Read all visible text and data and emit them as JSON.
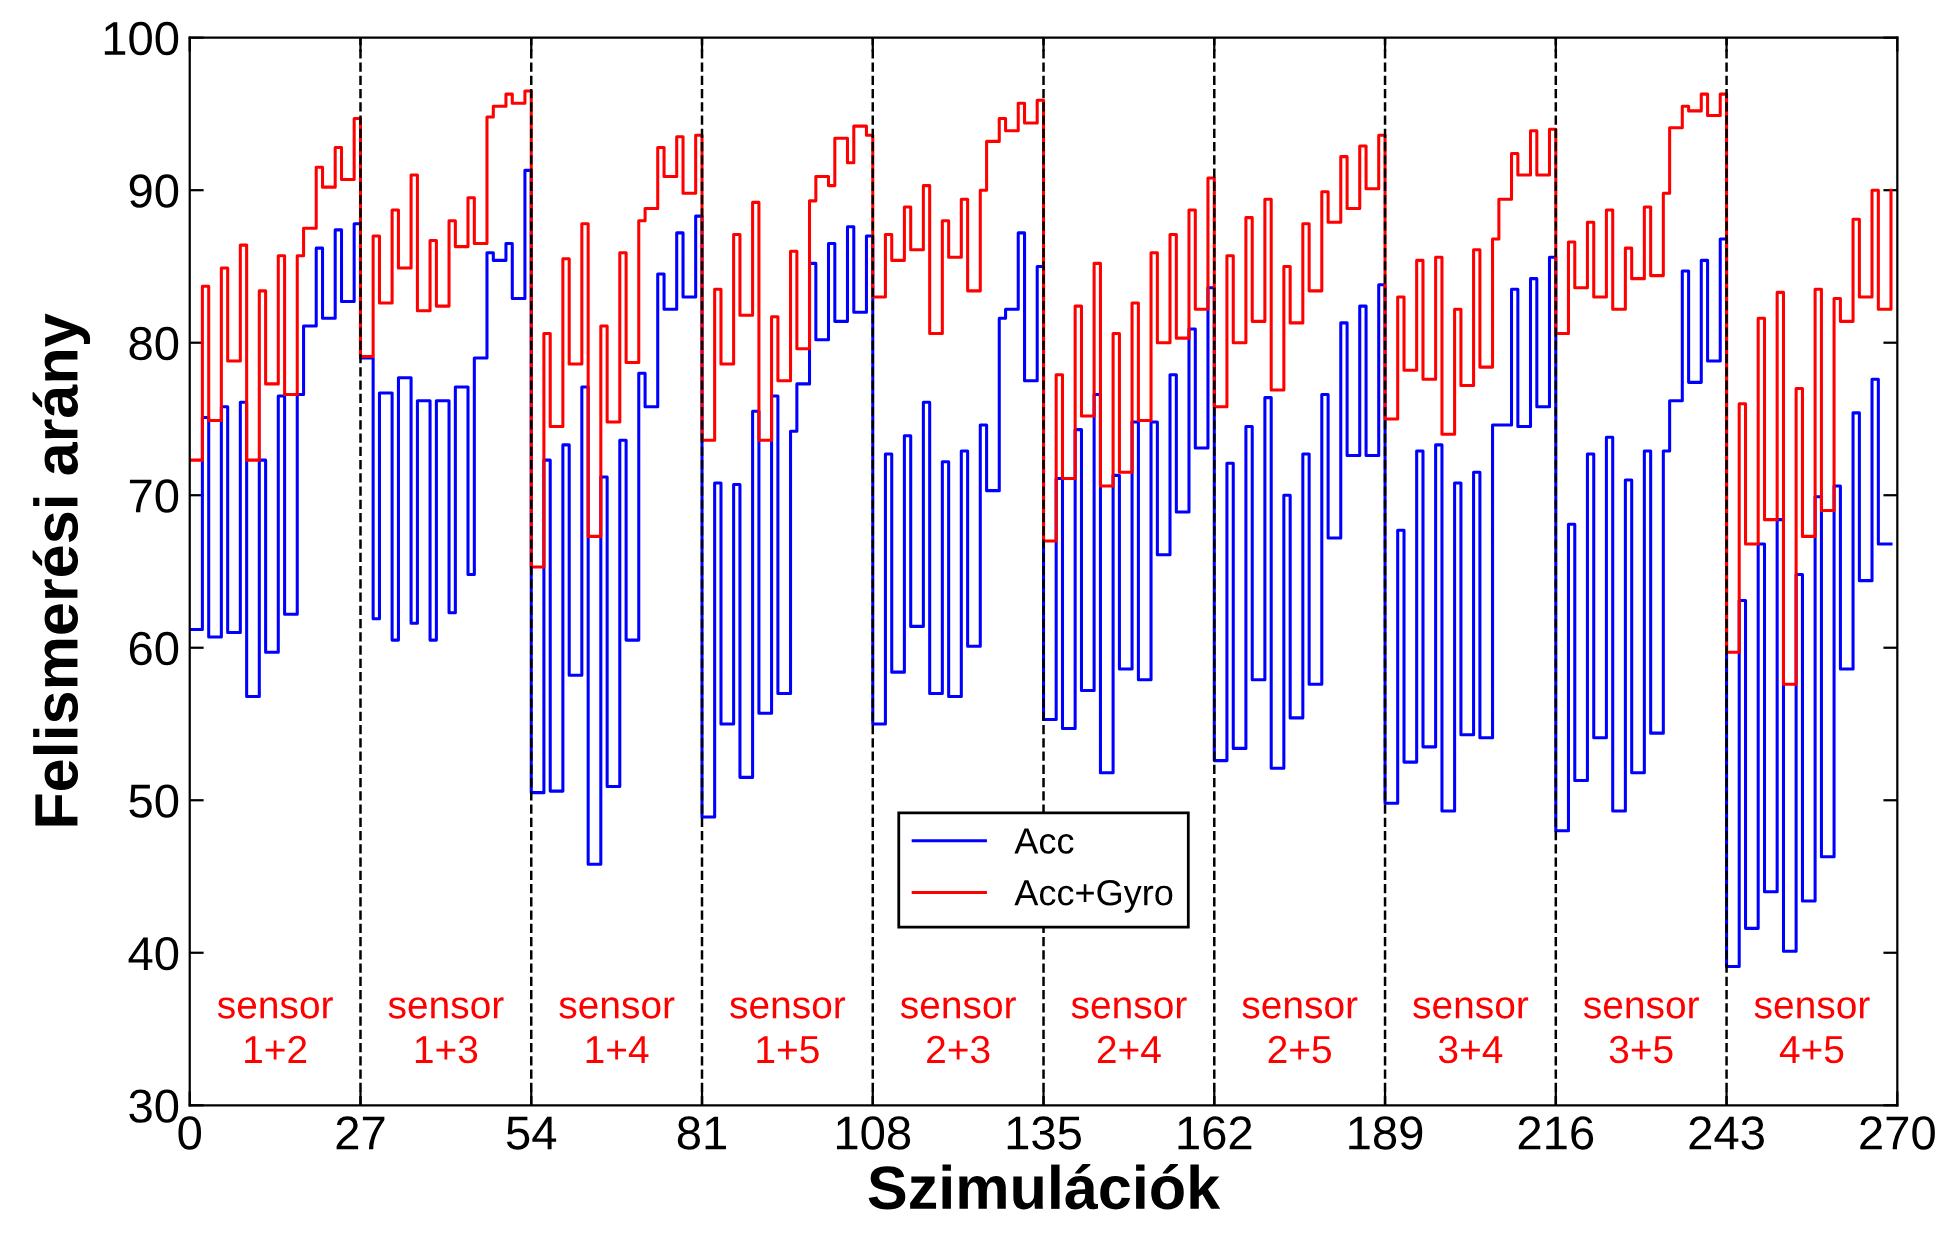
{
  "chart_data": {
    "type": "step",
    "xlabel": "Szimulációk",
    "ylabel": "Felismerési arány",
    "xlim": [
      0,
      270
    ],
    "ylim": [
      30,
      100
    ],
    "xticks": [
      0,
      27,
      54,
      81,
      108,
      135,
      162,
      189,
      216,
      243,
      270
    ],
    "yticks": [
      30,
      40,
      50,
      60,
      70,
      80,
      90,
      100
    ],
    "grid": false,
    "legend": "bottom",
    "line_style": "solid",
    "marker": "none",
    "x": [
      0,
      2,
      3,
      5,
      6,
      8,
      9,
      11,
      12,
      14,
      15,
      17,
      18,
      20,
      21,
      23,
      24,
      26,
      27,
      29,
      30,
      32,
      33,
      35,
      36,
      38,
      39,
      41,
      42,
      44,
      45,
      47,
      48,
      50,
      51,
      53,
      54,
      56,
      57,
      59,
      60,
      62,
      63,
      65,
      66,
      68,
      69,
      71,
      72,
      74,
      75,
      77,
      78,
      80,
      81,
      83,
      84,
      86,
      87,
      89,
      90,
      92,
      93,
      95,
      96,
      98,
      99,
      101,
      102,
      104,
      105,
      107,
      108,
      110,
      111,
      113,
      114,
      116,
      117,
      119,
      120,
      122,
      123,
      125,
      126,
      128,
      129,
      131,
      132,
      134,
      135,
      137,
      138,
      140,
      141,
      143,
      144,
      146,
      147,
      149,
      150,
      152,
      153,
      155,
      156,
      158,
      159,
      161,
      162,
      164,
      165,
      167,
      168,
      170,
      171,
      173,
      174,
      176,
      177,
      179,
      180,
      182,
      183,
      185,
      186,
      188,
      189,
      191,
      192,
      194,
      195,
      197,
      198,
      200,
      201,
      203,
      204,
      206,
      207,
      209,
      210,
      212,
      213,
      215,
      216,
      218,
      219,
      221,
      222,
      224,
      225,
      227,
      228,
      230,
      231,
      233,
      234,
      236,
      237,
      239,
      240,
      242,
      243,
      245,
      246,
      248,
      249,
      251,
      252,
      254,
      255,
      257,
      258,
      260,
      261,
      263,
      264,
      266,
      267,
      269
    ],
    "series": [
      {
        "name": "Acc",
        "color": "#0000ff",
        "values": [
          61.2,
          75.1,
          60.7,
          75.8,
          61,
          76.1,
          56.8,
          72.3,
          59.7,
          76.5,
          62.2,
          76.6,
          81.1,
          86.2,
          81.6,
          87.4,
          82.7,
          87.8,
          79,
          61.9,
          76.7,
          60.5,
          77.7,
          61.6,
          76.2,
          60.5,
          76.2,
          62.3,
          77.1,
          64.8,
          79,
          85.9,
          85.4,
          86.5,
          82.9,
          91.3,
          50.5,
          72.3,
          50.6,
          73.3,
          58.2,
          77.1,
          45.8,
          71.2,
          50.9,
          73.6,
          60.5,
          78,
          75.8,
          84.5,
          82.2,
          87.2,
          83,
          88.3,
          48.9,
          70.8,
          55,
          70.7,
          51.5,
          75.5,
          55.7,
          76.5,
          57,
          74.2,
          77.3,
          85.2,
          80.2,
          86.5,
          81.4,
          87.6,
          82,
          87,
          55,
          72.7,
          58.4,
          73.9,
          61.4,
          76.1,
          57,
          72.2,
          56.8,
          72.9,
          60.1,
          74.6,
          70.3,
          81.6,
          82.2,
          87.2,
          77.5,
          85,
          55.3,
          71.1,
          54.7,
          74.3,
          57.2,
          76.6,
          51.8,
          71.3,
          58.6,
          74.8,
          57.9,
          74.8,
          66.1,
          77.9,
          68.9,
          80.9,
          73.1,
          83.6,
          52.6,
          72.1,
          53.4,
          74.5,
          57.9,
          76.4,
          52.1,
          70,
          55.4,
          72.7,
          57.6,
          76.6,
          67.2,
          81.3,
          72.6,
          82.4,
          72.6,
          83.8,
          49.8,
          67.7,
          52.5,
          72.9,
          53.5,
          73.3,
          49.3,
          70.8,
          54.3,
          71.5,
          54.1,
          74.6,
          74.6,
          83.5,
          74.5,
          84.2,
          75.8,
          85.6,
          48,
          68.1,
          51.3,
          72.7,
          54.1,
          73.8,
          49.3,
          71,
          51.8,
          72.9,
          54.4,
          72.9,
          76.2,
          84.7,
          77.4,
          85.4,
          78.8,
          86.8,
          39.1,
          63.1,
          41.6,
          66.8,
          44,
          68.4,
          40.1,
          64.8,
          43.4,
          69.9,
          46.3,
          70.6,
          58.6,
          75.4,
          64.4,
          77.6,
          66.8,
          66.8
        ]
      },
      {
        "name": "Acc+Gyro",
        "color": "#ff0000",
        "values": [
          72.3,
          83.7,
          74.9,
          84.9,
          78.8,
          86.4,
          72.3,
          83.4,
          77.3,
          85.7,
          76.6,
          85.7,
          87.5,
          91.5,
          90.2,
          92.8,
          90.7,
          94.7,
          79.1,
          87,
          82.6,
          88.7,
          84.9,
          91,
          82.1,
          86.7,
          82.4,
          88,
          86.3,
          89.5,
          86.5,
          94.8,
          95.5,
          96.3,
          95.7,
          96.5,
          65.3,
          80.6,
          74.5,
          85.5,
          78.6,
          87.8,
          67.3,
          81.1,
          74.8,
          85.9,
          78.7,
          88,
          88.8,
          92.8,
          90.9,
          93.5,
          89.8,
          93.6,
          73.6,
          83.5,
          78.6,
          87.1,
          81.8,
          89.2,
          73.6,
          81.7,
          77.5,
          86,
          79.6,
          89.3,
          90.9,
          90.3,
          93.4,
          91.8,
          94.2,
          93.6,
          83,
          87.1,
          85.4,
          88.9,
          86.1,
          90.3,
          80.6,
          88,
          85.6,
          89.4,
          83.4,
          90,
          93.2,
          94.7,
          93.9,
          95.7,
          94.4,
          95.9,
          67,
          77.9,
          71.1,
          82.4,
          75.2,
          85.2,
          70.6,
          80.6,
          71.5,
          82.6,
          74.9,
          85.9,
          80,
          87.1,
          80.3,
          88.7,
          82.2,
          90.8,
          75.8,
          85.7,
          80,
          88.2,
          81.4,
          89.4,
          76.9,
          85,
          81.3,
          87.8,
          83.4,
          89.9,
          87.9,
          92.2,
          88.8,
          92.9,
          90.1,
          93.6,
          75,
          83,
          78.2,
          85.4,
          77.6,
          85.6,
          74,
          82.2,
          77.2,
          86.1,
          78.4,
          86.8,
          89.4,
          92.4,
          91,
          93.9,
          91,
          94,
          80.6,
          86.6,
          83.6,
          87.9,
          83,
          88.7,
          82.2,
          86.2,
          84.2,
          88.9,
          84.4,
          89.8,
          94.1,
          95.5,
          95.2,
          96.3,
          94.9,
          96.3,
          59.7,
          76,
          66.8,
          81.6,
          68.4,
          83.3,
          57.6,
          77,
          67.3,
          83.5,
          69,
          82.9,
          81.4,
          88.1,
          83,
          90,
          82.2,
          90
        ]
      }
    ],
    "ref_lines": [
      {
        "axis": "x",
        "value": 27,
        "line_style": "dashed",
        "color": "#000000"
      },
      {
        "axis": "x",
        "value": 54,
        "line_style": "dashed",
        "color": "#000000"
      },
      {
        "axis": "x",
        "value": 81,
        "line_style": "dashed",
        "color": "#000000"
      },
      {
        "axis": "x",
        "value": 108,
        "line_style": "dashed",
        "color": "#000000"
      },
      {
        "axis": "x",
        "value": 135,
        "line_style": "dashed",
        "color": "#000000"
      },
      {
        "axis": "x",
        "value": 162,
        "line_style": "dashed",
        "color": "#000000"
      },
      {
        "axis": "x",
        "value": 189,
        "line_style": "dashed",
        "color": "#000000"
      },
      {
        "axis": "x",
        "value": 216,
        "line_style": "dashed",
        "color": "#000000"
      },
      {
        "axis": "x",
        "value": 243,
        "line_style": "dashed",
        "color": "#000000"
      }
    ],
    "annotations": [
      "sensor\n1+2",
      "sensor\n1+3",
      "sensor\n1+4",
      "sensor\n1+5",
      "sensor\n2+3",
      "sensor\n2+4",
      "sensor\n2+5",
      "sensor\n3+4",
      "sensor\n3+5",
      "sensor\n4+5"
    ]
  }
}
